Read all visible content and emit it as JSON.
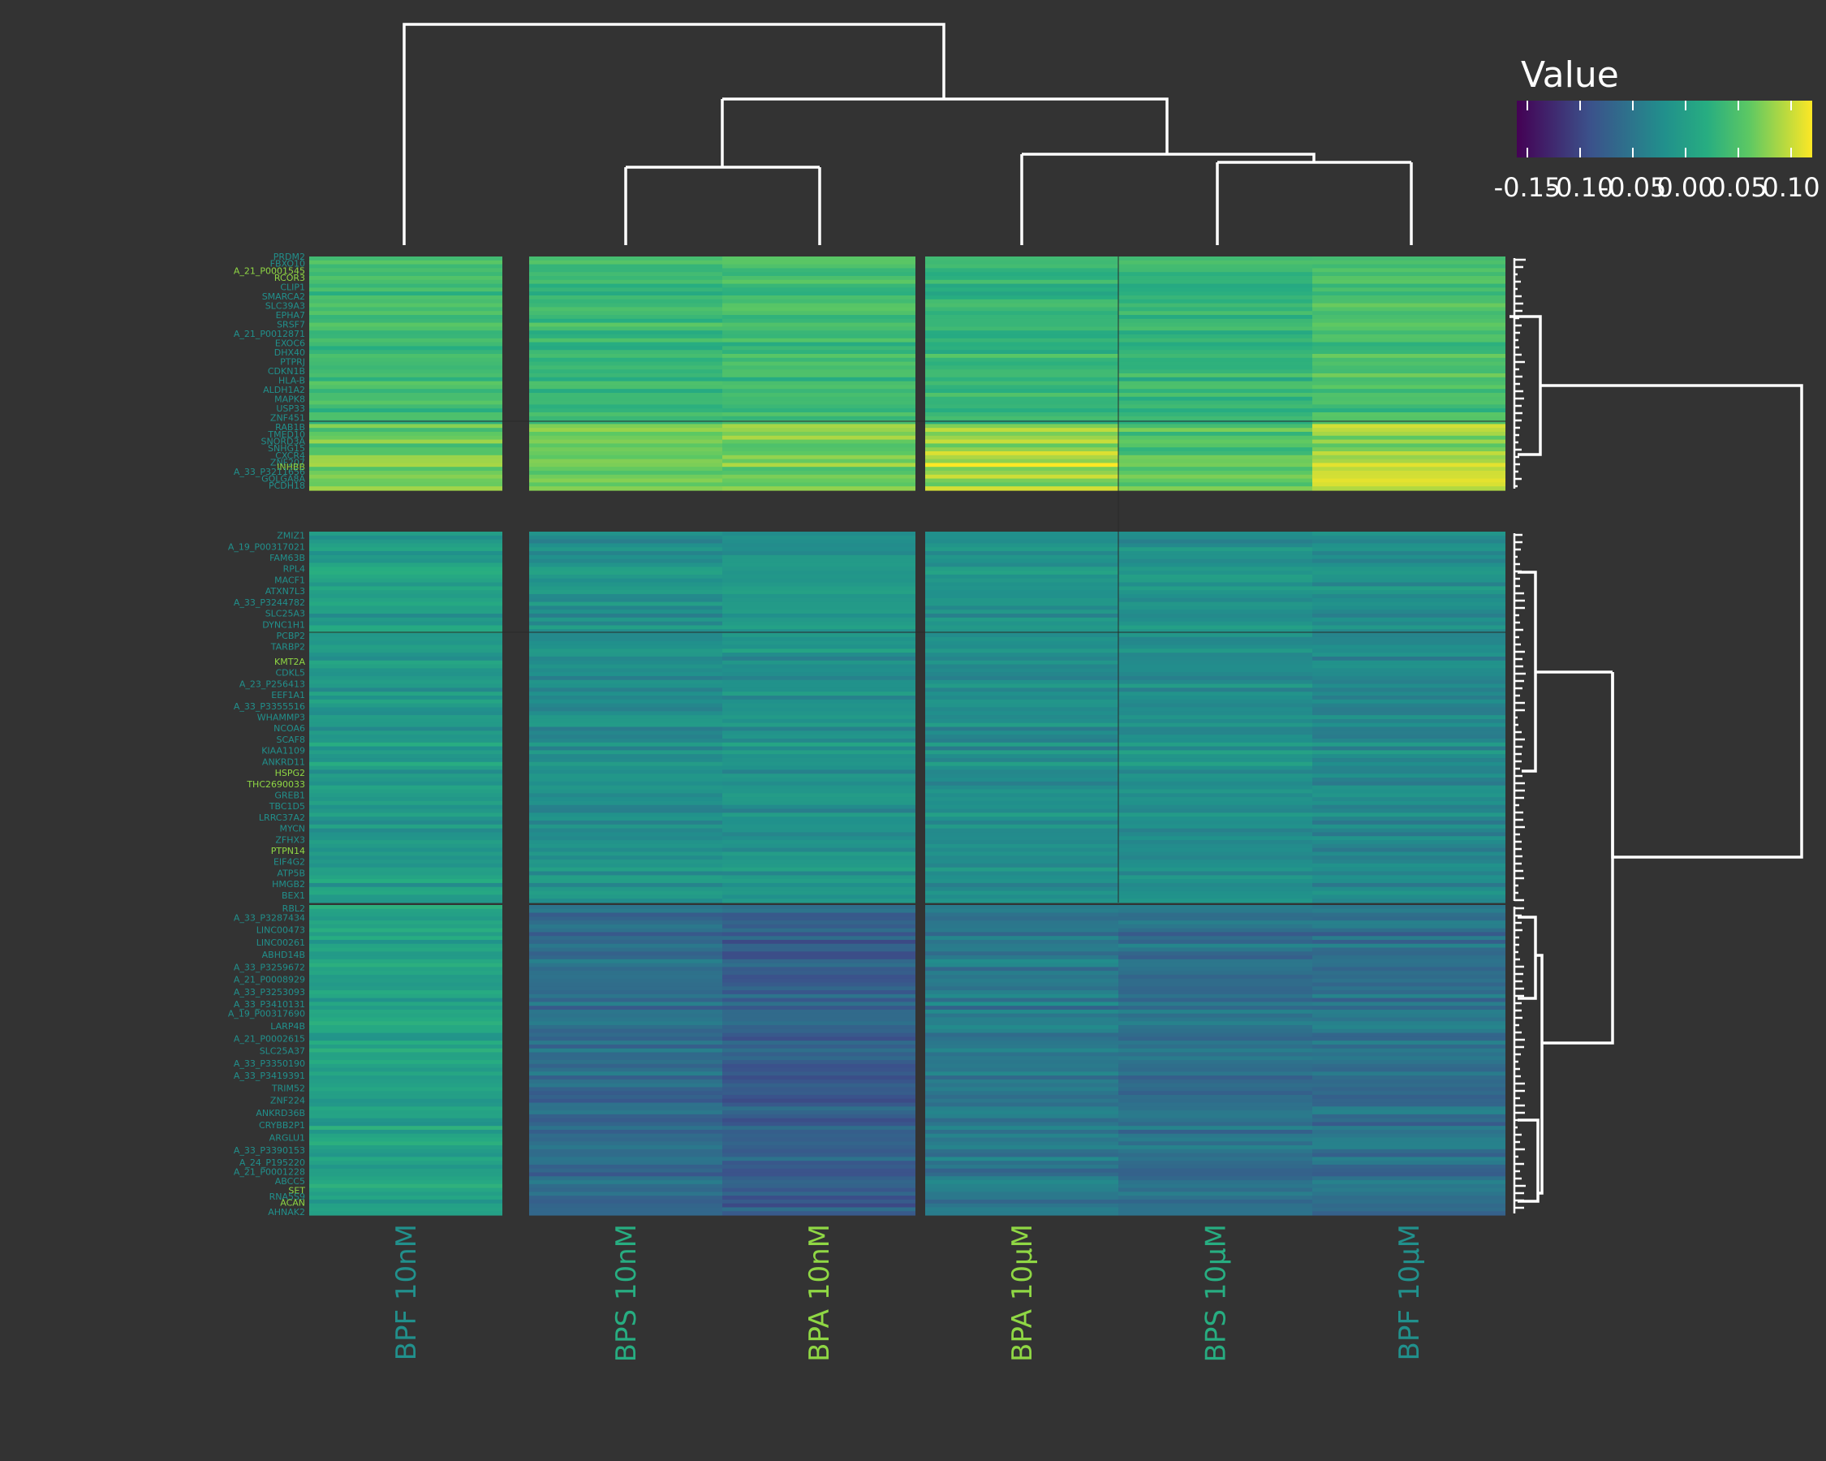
{
  "chart_data": {
    "type": "heatmap",
    "legend": {
      "title": "Value",
      "ticks": [
        "-0.15",
        "-0.10",
        "-0.05",
        "0.00",
        "0.05",
        "0.10"
      ],
      "tick_values": [
        -0.15,
        -0.1,
        -0.05,
        0.0,
        0.05,
        0.1
      ],
      "range": [
        -0.16,
        0.12
      ],
      "placement": "top-right"
    },
    "colors": [
      "#440154",
      "#3b528b",
      "#21908c",
      "#27ad81",
      "#5dc863",
      "#fde725"
    ],
    "color_stops": [
      -0.16,
      -0.09,
      -0.02,
      0.02,
      0.06,
      0.12
    ],
    "columns": [
      {
        "label": "BPF 10nM",
        "color": "#21908c"
      },
      {
        "label": "BPS 10nM",
        "color": "#27ad81"
      },
      {
        "label": "BPA 10nM",
        "color": "#8fd744"
      },
      {
        "label": "BPA 10µM",
        "color": "#8fd744"
      },
      {
        "label": "BPS 10µM",
        "color": "#27ad81"
      },
      {
        "label": "BPF 10µM",
        "color": "#21908c"
      }
    ],
    "column_splits": [
      [
        0
      ],
      [
        1,
        2
      ],
      [
        3,
        4,
        5
      ]
    ],
    "row_blocks": [
      {
        "name": "cluster-1",
        "rows": 60,
        "base": [
          0.04,
          0.035,
          0.04,
          0.03,
          0.03,
          0.045
        ],
        "highlight_start": 43,
        "highlight_shift": [
          0.03,
          0.035,
          0.035,
          0.06,
          0.03,
          0.05
        ]
      },
      {
        "name": "cluster-2",
        "rows": 95,
        "base": [
          -0.005,
          -0.02,
          -0.015,
          -0.02,
          -0.02,
          -0.025
        ]
      },
      {
        "name": "cluster-3",
        "rows": 80,
        "base": [
          0.005,
          -0.06,
          -0.075,
          -0.045,
          -0.055,
          -0.055
        ]
      }
    ],
    "row_labels": [
      {
        "block": 0,
        "pos": 0.0,
        "text": "PRDM2",
        "color": "#21908c"
      },
      {
        "block": 0,
        "pos": 0.03,
        "text": "FBXO10",
        "color": "#21908c"
      },
      {
        "block": 0,
        "pos": 0.06,
        "text": "A_21_P0001545",
        "color": "#8fd744"
      },
      {
        "block": 0,
        "pos": 0.09,
        "text": "RCOR3",
        "color": "#8fd744"
      },
      {
        "block": 0,
        "pos": 0.13,
        "text": "CLIP1",
        "color": "#21908c"
      },
      {
        "block": 0,
        "pos": 0.17,
        "text": "SMARCA2",
        "color": "#21908c"
      },
      {
        "block": 0,
        "pos": 0.21,
        "text": "SLC39A3",
        "color": "#21908c"
      },
      {
        "block": 0,
        "pos": 0.25,
        "text": "EPHA7",
        "color": "#21908c"
      },
      {
        "block": 0,
        "pos": 0.29,
        "text": "SRSF7",
        "color": "#21908c"
      },
      {
        "block": 0,
        "pos": 0.33,
        "text": "A_21_P0012871",
        "color": "#21908c"
      },
      {
        "block": 0,
        "pos": 0.37,
        "text": "EXOC6",
        "color": "#21908c"
      },
      {
        "block": 0,
        "pos": 0.41,
        "text": "DHX40",
        "color": "#21908c"
      },
      {
        "block": 0,
        "pos": 0.45,
        "text": "PTPRJ",
        "color": "#21908c"
      },
      {
        "block": 0,
        "pos": 0.49,
        "text": "CDKN1B",
        "color": "#21908c"
      },
      {
        "block": 0,
        "pos": 0.53,
        "text": "HLA-B",
        "color": "#21908c"
      },
      {
        "block": 0,
        "pos": 0.57,
        "text": "ALDH1A2",
        "color": "#21908c"
      },
      {
        "block": 0,
        "pos": 0.61,
        "text": "MAPK8",
        "color": "#21908c"
      },
      {
        "block": 0,
        "pos": 0.65,
        "text": "USP33",
        "color": "#21908c"
      },
      {
        "block": 0,
        "pos": 0.69,
        "text": "ZNF451",
        "color": "#21908c"
      },
      {
        "block": 0,
        "pos": 0.73,
        "text": "RAB1B",
        "color": "#21908c"
      },
      {
        "block": 0,
        "pos": 0.76,
        "text": "TMED10",
        "color": "#21908c"
      },
      {
        "block": 0,
        "pos": 0.79,
        "text": "SNORD3A",
        "color": "#21908c"
      },
      {
        "block": 0,
        "pos": 0.82,
        "text": "SNHG15",
        "color": "#21908c"
      },
      {
        "block": 0,
        "pos": 0.85,
        "text": "CXCR4",
        "color": "#21908c"
      },
      {
        "block": 0,
        "pos": 0.88,
        "text": "ZNF207",
        "color": "#21908c"
      },
      {
        "block": 0,
        "pos": 0.9,
        "text": "INHBB",
        "color": "#8fd744"
      },
      {
        "block": 0,
        "pos": 0.92,
        "text": "A_33_P3211656",
        "color": "#21908c"
      },
      {
        "block": 0,
        "pos": 0.95,
        "text": "GOLGA8A",
        "color": "#21908c"
      },
      {
        "block": 0,
        "pos": 0.98,
        "text": "PCDH18",
        "color": "#21908c"
      },
      {
        "block": 1,
        "pos": 0.01,
        "text": "ZMIZ1",
        "color": "#21908c"
      },
      {
        "block": 1,
        "pos": 0.04,
        "text": "A_19_P00317021",
        "color": "#21908c"
      },
      {
        "block": 1,
        "pos": 0.07,
        "text": "FAM63B",
        "color": "#21908c"
      },
      {
        "block": 1,
        "pos": 0.1,
        "text": "RPL4",
        "color": "#21908c"
      },
      {
        "block": 1,
        "pos": 0.13,
        "text": "MACF1",
        "color": "#21908c"
      },
      {
        "block": 1,
        "pos": 0.16,
        "text": "ATXN7L3",
        "color": "#21908c"
      },
      {
        "block": 1,
        "pos": 0.19,
        "text": "A_33_P3244782",
        "color": "#21908c"
      },
      {
        "block": 1,
        "pos": 0.22,
        "text": "SLC25A3",
        "color": "#21908c"
      },
      {
        "block": 1,
        "pos": 0.25,
        "text": "DYNC1H1",
        "color": "#21908c"
      },
      {
        "block": 1,
        "pos": 0.28,
        "text": "PCBP2",
        "color": "#21908c"
      },
      {
        "block": 1,
        "pos": 0.31,
        "text": "TARBP2",
        "color": "#21908c"
      },
      {
        "block": 1,
        "pos": 0.35,
        "text": "KMT2A",
        "color": "#8fd744"
      },
      {
        "block": 1,
        "pos": 0.38,
        "text": "CDKL5",
        "color": "#21908c"
      },
      {
        "block": 1,
        "pos": 0.41,
        "text": "A_23_P256413",
        "color": "#21908c"
      },
      {
        "block": 1,
        "pos": 0.44,
        "text": "EEF1A1",
        "color": "#21908c"
      },
      {
        "block": 1,
        "pos": 0.47,
        "text": "A_33_P3355516",
        "color": "#21908c"
      },
      {
        "block": 1,
        "pos": 0.5,
        "text": "WHAMMP3",
        "color": "#21908c"
      },
      {
        "block": 1,
        "pos": 0.53,
        "text": "NCOA6",
        "color": "#21908c"
      },
      {
        "block": 1,
        "pos": 0.56,
        "text": "SCAF8",
        "color": "#21908c"
      },
      {
        "block": 1,
        "pos": 0.59,
        "text": "KIAA1109",
        "color": "#21908c"
      },
      {
        "block": 1,
        "pos": 0.62,
        "text": "ANKRD11",
        "color": "#21908c"
      },
      {
        "block": 1,
        "pos": 0.65,
        "text": "HSPG2",
        "color": "#8fd744"
      },
      {
        "block": 1,
        "pos": 0.68,
        "text": "THC2690033",
        "color": "#8fd744"
      },
      {
        "block": 1,
        "pos": 0.71,
        "text": "GREB1",
        "color": "#21908c"
      },
      {
        "block": 1,
        "pos": 0.74,
        "text": "TBC1D5",
        "color": "#21908c"
      },
      {
        "block": 1,
        "pos": 0.77,
        "text": "LRRC37A2",
        "color": "#21908c"
      },
      {
        "block": 1,
        "pos": 0.8,
        "text": "MYCN",
        "color": "#21908c"
      },
      {
        "block": 1,
        "pos": 0.83,
        "text": "ZFHX3",
        "color": "#21908c"
      },
      {
        "block": 1,
        "pos": 0.86,
        "text": "PTPN14",
        "color": "#8fd744"
      },
      {
        "block": 1,
        "pos": 0.89,
        "text": "EIF4G2",
        "color": "#21908c"
      },
      {
        "block": 1,
        "pos": 0.92,
        "text": "ATP5B",
        "color": "#21908c"
      },
      {
        "block": 1,
        "pos": 0.95,
        "text": "HMGB2",
        "color": "#21908c"
      },
      {
        "block": 1,
        "pos": 0.98,
        "text": "BEX1",
        "color": "#21908c"
      },
      {
        "block": 2,
        "pos": 0.01,
        "text": "RBL2",
        "color": "#21908c"
      },
      {
        "block": 2,
        "pos": 0.04,
        "text": "A_33_P3287434",
        "color": "#21908c"
      },
      {
        "block": 2,
        "pos": 0.08,
        "text": "LINC00473",
        "color": "#21908c"
      },
      {
        "block": 2,
        "pos": 0.12,
        "text": "LINC00261",
        "color": "#21908c"
      },
      {
        "block": 2,
        "pos": 0.16,
        "text": "ABHD14B",
        "color": "#21908c"
      },
      {
        "block": 2,
        "pos": 0.2,
        "text": "A_33_P3259672",
        "color": "#21908c"
      },
      {
        "block": 2,
        "pos": 0.24,
        "text": "A_21_P0008929",
        "color": "#21908c"
      },
      {
        "block": 2,
        "pos": 0.28,
        "text": "A_33_P3253093",
        "color": "#21908c"
      },
      {
        "block": 2,
        "pos": 0.32,
        "text": "A_33_P3410131",
        "color": "#21908c"
      },
      {
        "block": 2,
        "pos": 0.35,
        "text": "A_19_P00317690",
        "color": "#21908c"
      },
      {
        "block": 2,
        "pos": 0.39,
        "text": "LARP4B",
        "color": "#21908c"
      },
      {
        "block": 2,
        "pos": 0.43,
        "text": "A_21_P0002615",
        "color": "#21908c"
      },
      {
        "block": 2,
        "pos": 0.47,
        "text": "SLC25A37",
        "color": "#21908c"
      },
      {
        "block": 2,
        "pos": 0.51,
        "text": "A_33_P3350190",
        "color": "#21908c"
      },
      {
        "block": 2,
        "pos": 0.55,
        "text": "A_33_P3419391",
        "color": "#21908c"
      },
      {
        "block": 2,
        "pos": 0.59,
        "text": "TRIM52",
        "color": "#21908c"
      },
      {
        "block": 2,
        "pos": 0.63,
        "text": "ZNF224",
        "color": "#21908c"
      },
      {
        "block": 2,
        "pos": 0.67,
        "text": "ANKRD36B",
        "color": "#21908c"
      },
      {
        "block": 2,
        "pos": 0.71,
        "text": "CRYBB2P1",
        "color": "#21908c"
      },
      {
        "block": 2,
        "pos": 0.75,
        "text": "ARGLU1",
        "color": "#21908c"
      },
      {
        "block": 2,
        "pos": 0.79,
        "text": "A_33_P3390153",
        "color": "#21908c"
      },
      {
        "block": 2,
        "pos": 0.83,
        "text": "A_24_P195220",
        "color": "#21908c"
      },
      {
        "block": 2,
        "pos": 0.86,
        "text": "A_21_P0001228",
        "color": "#21908c"
      },
      {
        "block": 2,
        "pos": 0.89,
        "text": "ABCC5",
        "color": "#21908c"
      },
      {
        "block": 2,
        "pos": 0.92,
        "text": "SET",
        "color": "#8fd744"
      },
      {
        "block": 2,
        "pos": 0.94,
        "text": "RNA5S9",
        "color": "#21908c"
      },
      {
        "block": 2,
        "pos": 0.96,
        "text": "ACAN",
        "color": "#8fd744"
      },
      {
        "block": 2,
        "pos": 0.99,
        "text": "AHNAK2",
        "color": "#21908c"
      }
    ]
  }
}
